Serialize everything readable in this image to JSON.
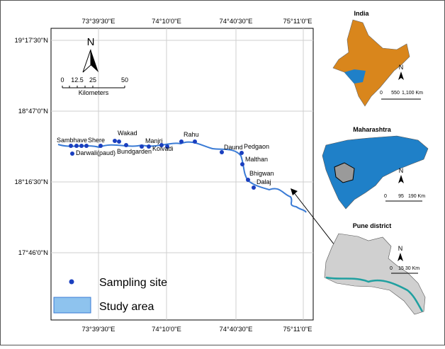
{
  "map": {
    "lon_labels": [
      "73°39'30\"E",
      "74°10'0\"E",
      "74°40'30\"E",
      "75°11'0\"E"
    ],
    "lat_labels": [
      "19°17'30\"N",
      "18°47'0\"N",
      "18°16'30\"N",
      "17°46'0\"N"
    ],
    "north": "N",
    "scale_labels": [
      "0",
      "12.5",
      "25",
      "50"
    ],
    "scale_unit": "Kilometers",
    "sites": [
      "Sambhave",
      "Shere",
      "Darwali(paud)",
      "Wakad",
      "Bundgarden",
      "Manjri",
      "Kolvadi",
      "Rahu",
      "Daund",
      "Pedgaon",
      "Malthan",
      "Bhigwan",
      "Dalaj"
    ],
    "legend": [
      "Sampling site",
      "Study area"
    ]
  },
  "insets": [
    {
      "title": "India",
      "north": "N",
      "scale_labels": [
        "0",
        "550",
        "1,100 Km"
      ]
    },
    {
      "title": "Maharashtra",
      "north": "N",
      "scale_labels": [
        "0",
        "95",
        "190 Km"
      ]
    },
    {
      "title": "Pune district",
      "north": "N",
      "scale_labels": [
        "0",
        "15",
        "30 Km"
      ]
    }
  ]
}
